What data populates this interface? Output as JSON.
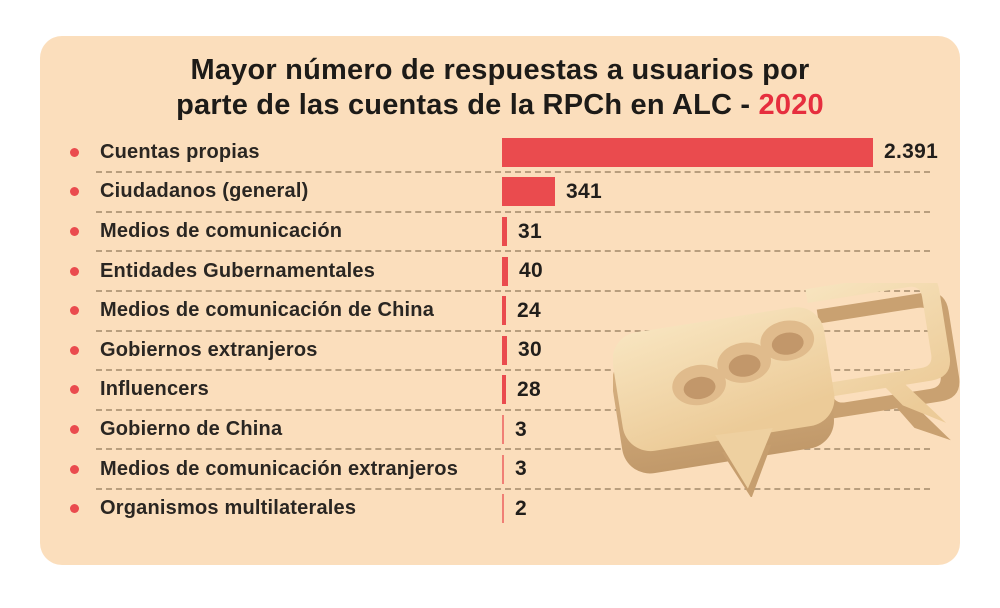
{
  "title": {
    "line1": "Mayor número de respuestas a usuarios por",
    "line2_prefix": "parte de las cuentas de la RPCh en ALC - ",
    "year": "2020"
  },
  "colors": {
    "background": "#ffffff",
    "card_background": "#fbdebc",
    "bar_red": "#ea4b4e",
    "bullet_red": "#ea4b4e",
    "year_red": "#e62e3e",
    "label_text": "#2a2622",
    "divider": "#82694b",
    "illustration_tan": "#f2d7aa"
  },
  "icons": {
    "bullet": "red-dot-icon",
    "illustration": "3d-chat-bubbles-illustration"
  },
  "chart_data": {
    "type": "bar",
    "orientation": "horizontal",
    "title": "Mayor número de respuestas a usuarios por parte de las cuentas de la RPCh en ALC - 2020",
    "categories": [
      "Cuentas propias",
      "Ciudadanos (general)",
      "Medios de comunicación",
      "Entidades Gubernamentales",
      "Medios de comunicación de China",
      "Gobiernos extranjeros",
      "Influencers",
      "Gobierno de China",
      "Medios de comunicación extranjeros",
      "Organismos multilaterales"
    ],
    "values": [
      2391,
      341,
      31,
      40,
      24,
      30,
      28,
      3,
      3,
      2
    ],
    "value_labels": [
      "2.391",
      "341",
      "31",
      "40",
      "24",
      "30",
      "28",
      "3",
      "3",
      "2"
    ],
    "xlim": [
      0,
      2391
    ],
    "grid": false,
    "legend": false
  }
}
